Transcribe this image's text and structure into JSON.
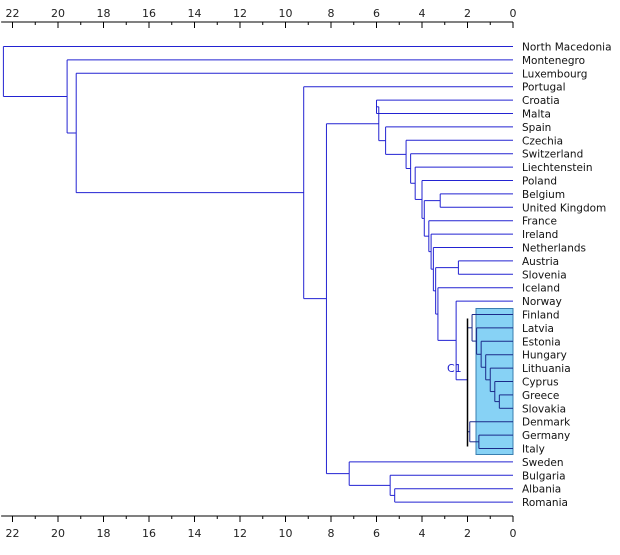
{
  "chart_data": {
    "type": "dendrogram",
    "axis": {
      "reversed": true,
      "range": [
        0,
        22.5
      ],
      "ticks": [
        "22",
        "20",
        "18",
        "16",
        "14",
        "12",
        "10",
        "8",
        "6",
        "4",
        "2",
        "0"
      ],
      "tick_values": [
        22,
        20,
        18,
        16,
        14,
        12,
        10,
        8,
        6,
        4,
        2,
        0
      ],
      "position": "top-and-bottom"
    },
    "leaves": [
      "North Macedonia",
      "Montenegro",
      "Luxembourg",
      "Portugal",
      "Croatia",
      "Malta",
      "Spain",
      "Czechia",
      "Switzerland",
      "Liechtenstein",
      "Poland",
      "Belgium",
      "United Kingdom",
      "France",
      "Ireland",
      "Netherlands",
      "Austria",
      "Slovenia",
      "Iceland",
      "Norway",
      "Finland",
      "Latvia",
      "Estonia",
      "Hungary",
      "Lithuania",
      "Cyprus",
      "Greece",
      "Slovakia",
      "Denmark",
      "Germany",
      "Italy",
      "Sweden",
      "Bulgaria",
      "Albania",
      "Romania"
    ],
    "merges": [
      {
        "left": "Slovakia",
        "right": "Greece",
        "height": 0.6,
        "highlight": true
      },
      {
        "left": "Cyprus",
        "right": 0,
        "height": 0.8,
        "highlight": true
      },
      {
        "left": "Lithuania",
        "right": 1,
        "height": 1.0,
        "highlight": true
      },
      {
        "left": "Hungary",
        "right": 2,
        "height": 1.2,
        "highlight": true
      },
      {
        "left": "Estonia",
        "right": 3,
        "height": 1.4,
        "highlight": true
      },
      {
        "left": "Latvia",
        "right": 4,
        "height": 1.6,
        "highlight": true
      },
      {
        "left": "Finland",
        "right": 5,
        "height": 1.8,
        "highlight": true
      },
      {
        "left": "Germany",
        "right": "Italy",
        "height": 1.5,
        "highlight": true
      },
      {
        "left": "Denmark",
        "right": 7,
        "height": 1.9,
        "highlight": true
      },
      {
        "left": 6,
        "right": 8,
        "height": 2.0,
        "highlight": true
      },
      {
        "left": "Austria",
        "right": "Slovenia",
        "height": 2.4
      },
      {
        "left": "Belgium",
        "right": "United Kingdom",
        "height": 3.2
      },
      {
        "left": "Norway",
        "right": 9,
        "height": 2.5
      },
      {
        "left": "Iceland",
        "right": 12,
        "height": 3.3
      },
      {
        "left": 10,
        "right": 13,
        "height": 3.4
      },
      {
        "left": "Netherlands",
        "right": 14,
        "height": 3.5
      },
      {
        "left": "Ireland",
        "right": 15,
        "height": 3.6
      },
      {
        "left": "France",
        "right": 16,
        "height": 3.7
      },
      {
        "left": 11,
        "right": 17,
        "height": 3.9
      },
      {
        "left": "Poland",
        "right": 18,
        "height": 4.0
      },
      {
        "left": "Liechtenstein",
        "right": 19,
        "height": 4.3
      },
      {
        "left": "Switzerland",
        "right": 20,
        "height": 4.5
      },
      {
        "left": "Czechia",
        "right": 21,
        "height": 4.7
      },
      {
        "left": "Spain",
        "right": 22,
        "height": 5.6
      },
      {
        "left": "Croatia",
        "right": "Malta",
        "height": 6.0
      },
      {
        "left": 24,
        "right": 23,
        "height": 5.9
      },
      {
        "left": "Albania",
        "right": "Romania",
        "height": 5.2
      },
      {
        "left": "Bulgaria",
        "right": 26,
        "height": 5.4
      },
      {
        "left": "Sweden",
        "right": 27,
        "height": 7.2
      },
      {
        "left": 25,
        "right": 28,
        "height": 8.2
      },
      {
        "left": "Portugal",
        "right": 29,
        "height": 9.2
      },
      {
        "left": "Luxembourg",
        "right": 30,
        "height": 19.2
      },
      {
        "left": "Montenegro",
        "right": 31,
        "height": 19.6
      },
      {
        "left": "North Macedonia",
        "right": 32,
        "height": 22.4
      }
    ],
    "highlight_cluster": {
      "label": "C1",
      "leaves": [
        "Finland",
        "Latvia",
        "Estonia",
        "Hungary",
        "Lithuania",
        "Cyprus",
        "Greece",
        "Slovakia",
        "Denmark",
        "Germany",
        "Italy"
      ],
      "fill": "#87d2f5",
      "border": "#000000"
    },
    "line_color": "#2323d2",
    "grid": false
  }
}
